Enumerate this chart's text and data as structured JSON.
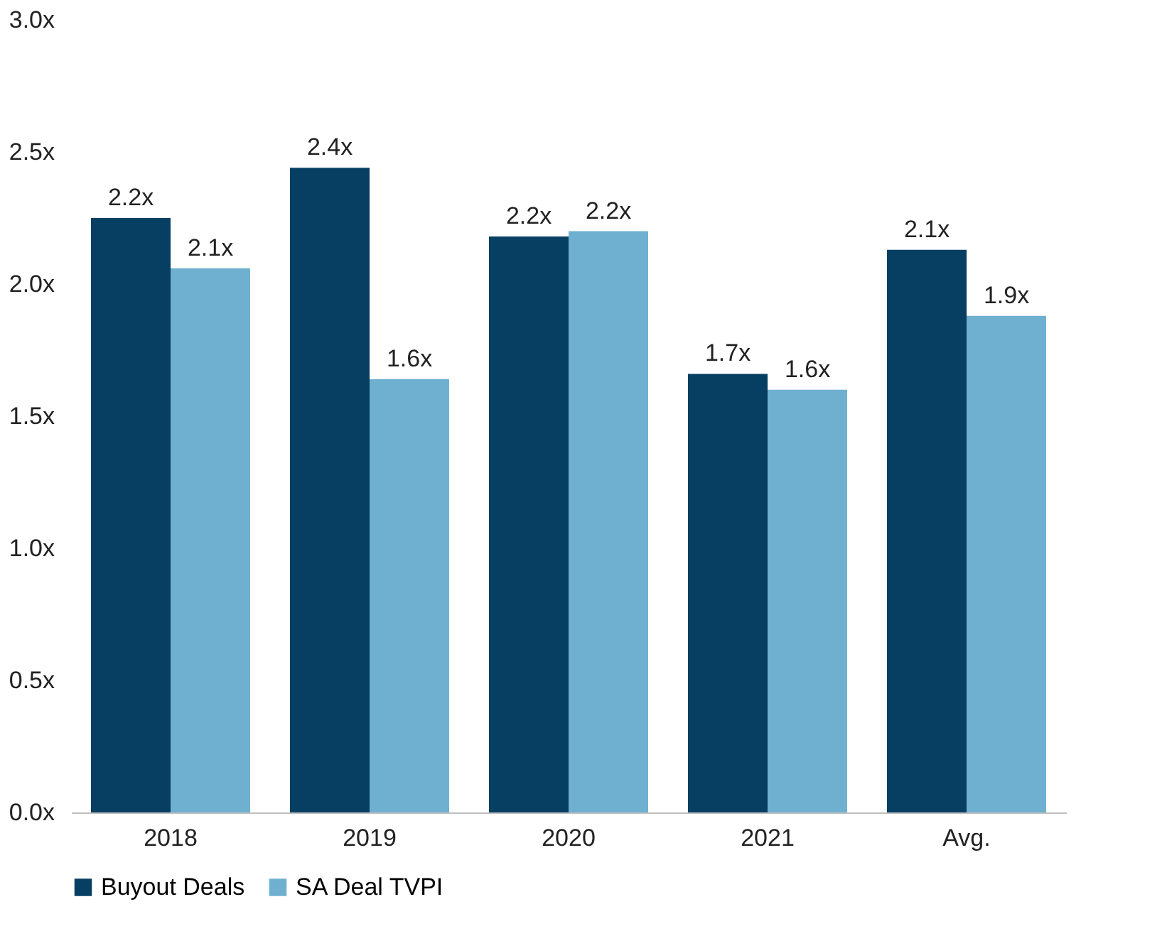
{
  "chart_data": {
    "type": "bar",
    "categories": [
      "2018",
      "2019",
      "2020",
      "2021",
      "Avg."
    ],
    "series": [
      {
        "name": "Buyout Deals",
        "color": "#073f63",
        "values": [
          2.25,
          2.44,
          2.18,
          1.66,
          2.13
        ],
        "value_labels": [
          "2.2x",
          "2.4x",
          "2.2x",
          "1.7x",
          "2.1x"
        ]
      },
      {
        "name": "SA Deal TVPI",
        "color": "#6fb0d0",
        "values": [
          2.06,
          1.64,
          2.2,
          1.6,
          1.88
        ],
        "value_labels": [
          "2.1x",
          "1.6x",
          "2.2x",
          "1.6x",
          "1.9x"
        ]
      }
    ],
    "ylim": [
      0,
      3
    ],
    "yticks": [
      {
        "value": 0,
        "label": "0.0x"
      },
      {
        "value": 0.5,
        "label": "0.5x"
      },
      {
        "value": 1,
        "label": "1.0x"
      },
      {
        "value": 1.5,
        "label": "1.5x"
      },
      {
        "value": 2,
        "label": "2.0x"
      },
      {
        "value": 2.5,
        "label": "2.5x"
      },
      {
        "value": 3,
        "label": "3.0x"
      }
    ],
    "grid": false,
    "legend": "bottom"
  }
}
